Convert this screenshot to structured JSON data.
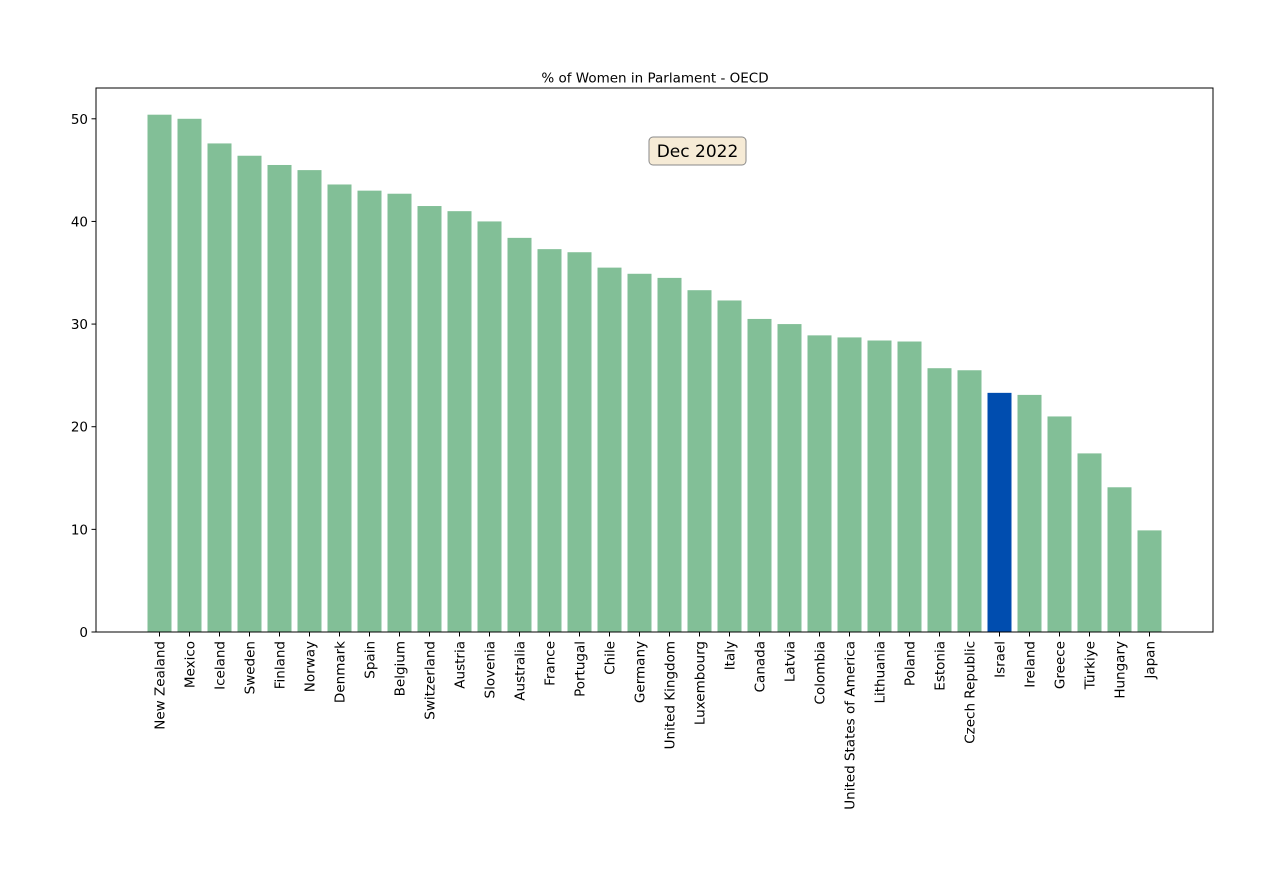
{
  "chart_data": {
    "type": "bar",
    "title": "% of Women in Parlament - OECD",
    "annotation": "Dec 2022",
    "xlabel": "",
    "ylabel": "",
    "ylim": [
      0,
      53
    ],
    "yticks": [
      0,
      10,
      20,
      30,
      40,
      50
    ],
    "grid": false,
    "bar_color": "#82bf97",
    "highlight_color": "#004daf",
    "highlight_category": "Israel",
    "annotation_box_fill": "#f6ebd6",
    "annotation_box_edge": "#8a8a8a",
    "categories": [
      "New Zealand",
      "Mexico",
      "Iceland",
      "Sweden",
      "Finland",
      "Norway",
      "Denmark",
      "Spain",
      "Belgium",
      "Switzerland",
      "Austria",
      "Slovenia",
      "Australia",
      "France",
      "Portugal",
      "Chile",
      "Germany",
      "United Kingdom",
      "Luxembourg",
      "Italy",
      "Canada",
      "Latvia",
      "Colombia",
      "United States of America",
      "Lithuania",
      "Poland",
      "Estonia",
      "Czech Republic",
      "Israel",
      "Ireland",
      "Greece",
      "Türkiye",
      "Hungary",
      "Japan"
    ],
    "values": [
      50.4,
      50.0,
      47.6,
      46.4,
      45.5,
      45.0,
      43.6,
      43.0,
      42.7,
      41.5,
      41.0,
      40.0,
      38.4,
      37.3,
      37.0,
      35.5,
      34.9,
      34.5,
      33.3,
      32.3,
      30.5,
      30.0,
      28.9,
      28.7,
      28.4,
      28.3,
      25.7,
      25.5,
      23.3,
      23.1,
      21.0,
      17.4,
      14.1,
      9.9
    ]
  }
}
